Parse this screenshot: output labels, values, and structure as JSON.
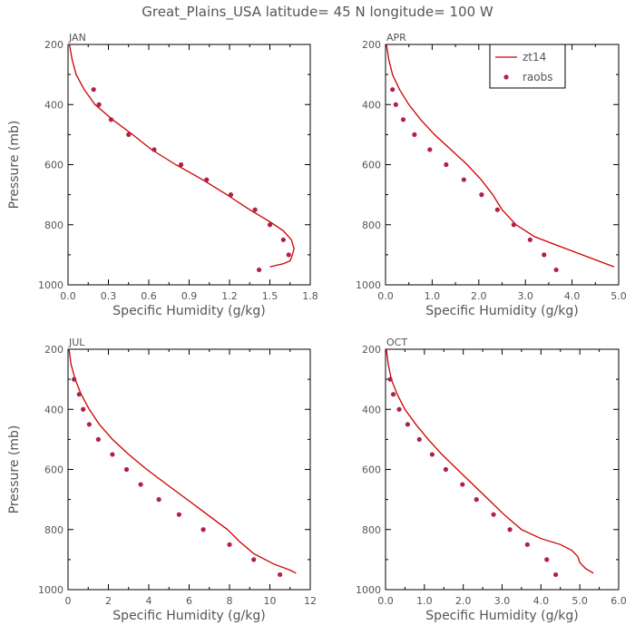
{
  "figure_title": "Great_Plains_USA   latitude= 45 N longitude= 100 W",
  "colors": {
    "line": "#cc0000",
    "points": "#b0204a",
    "text": "#555555",
    "axes": "#000000"
  },
  "chart_data": [
    {
      "type": "line",
      "panel_label": "JAN",
      "xlabel": "Specific Humidity (g/kg)",
      "ylabel": "Pressure (mb)",
      "xlim": [
        0,
        1.8
      ],
      "ylim": [
        1000,
        200
      ],
      "xticks": [
        "0.0",
        "0.3",
        "0.6",
        "0.9",
        "1.2",
        "1.5",
        "1.8"
      ],
      "yticks": [
        "200",
        "400",
        "600",
        "800",
        "1000"
      ],
      "show_legend": false,
      "legend": [],
      "series": [
        {
          "name": "zt14",
          "kind": "line",
          "x": [
            0.01,
            0.03,
            0.06,
            0.12,
            0.2,
            0.33,
            0.48,
            0.62,
            0.8,
            1.0,
            1.18,
            1.35,
            1.5,
            1.6,
            1.66,
            1.68,
            1.66,
            1.65,
            1.6,
            1.5
          ],
          "y": [
            200,
            250,
            300,
            350,
            400,
            450,
            500,
            550,
            600,
            650,
            700,
            750,
            790,
            820,
            850,
            880,
            910,
            920,
            930,
            940
          ]
        },
        {
          "name": "raobs",
          "kind": "scatter",
          "x": [
            0.19,
            0.23,
            0.32,
            0.45,
            0.64,
            0.84,
            1.03,
            1.21,
            1.39,
            1.5,
            1.6,
            1.64,
            1.42
          ],
          "y": [
            350,
            400,
            450,
            500,
            550,
            600,
            650,
            700,
            750,
            800,
            850,
            900,
            950
          ]
        }
      ]
    },
    {
      "type": "line",
      "panel_label": "APR",
      "xlabel": "Specific Humidity (g/kg)",
      "ylabel": "",
      "xlim": [
        0,
        5
      ],
      "ylim": [
        1000,
        200
      ],
      "xticks": [
        "0.0",
        "1.0",
        "2.0",
        "3.0",
        "4.0",
        "5.0"
      ],
      "yticks": [
        "200",
        "400",
        "600",
        "800",
        "1000"
      ],
      "show_legend": true,
      "legend": [
        "zt14",
        "raobs"
      ],
      "series": [
        {
          "name": "zt14",
          "kind": "line",
          "x": [
            0.02,
            0.07,
            0.15,
            0.3,
            0.5,
            0.75,
            1.05,
            1.4,
            1.75,
            2.05,
            2.3,
            2.5,
            2.8,
            3.2,
            3.7,
            4.3,
            4.9
          ],
          "y": [
            200,
            250,
            300,
            350,
            400,
            450,
            500,
            550,
            600,
            650,
            700,
            750,
            800,
            840,
            870,
            905,
            940
          ]
        },
        {
          "name": "raobs",
          "kind": "scatter",
          "x": [
            0.15,
            0.22,
            0.38,
            0.62,
            0.95,
            1.3,
            1.68,
            2.06,
            2.4,
            2.75,
            3.1,
            3.4,
            3.66
          ],
          "y": [
            350,
            400,
            450,
            500,
            550,
            600,
            650,
            700,
            750,
            800,
            850,
            900,
            950
          ]
        }
      ]
    },
    {
      "type": "line",
      "panel_label": "JUL",
      "xlabel": "Specific Humidity (g/kg)",
      "ylabel": "Pressure (mb)",
      "xlim": [
        0,
        12
      ],
      "ylim": [
        1000,
        200
      ],
      "xticks": [
        "0",
        "2",
        "4",
        "6",
        "8",
        "10",
        "12"
      ],
      "yticks": [
        "200",
        "400",
        "600",
        "800",
        "1000"
      ],
      "show_legend": false,
      "legend": [],
      "series": [
        {
          "name": "zt14",
          "kind": "line",
          "x": [
            0.05,
            0.15,
            0.35,
            0.65,
            1.05,
            1.55,
            2.2,
            3.0,
            3.9,
            4.9,
            5.9,
            6.9,
            7.9,
            8.5,
            9.2,
            10.2,
            11.0,
            11.3
          ],
          "y": [
            200,
            250,
            300,
            350,
            400,
            450,
            500,
            550,
            600,
            650,
            700,
            750,
            800,
            840,
            880,
            915,
            935,
            945
          ]
        },
        {
          "name": "raobs",
          "kind": "scatter",
          "x": [
            0.3,
            0.55,
            0.75,
            1.05,
            1.5,
            2.2,
            2.9,
            3.6,
            4.5,
            5.5,
            6.7,
            8.0,
            9.2,
            10.5
          ],
          "y": [
            300,
            350,
            400,
            450,
            500,
            550,
            600,
            650,
            700,
            750,
            800,
            850,
            900,
            950
          ]
        }
      ]
    },
    {
      "type": "line",
      "panel_label": "OCT",
      "xlabel": "Specific Humidity (g/kg)",
      "ylabel": "",
      "xlim": [
        0,
        6
      ],
      "ylim": [
        1000,
        200
      ],
      "xticks": [
        "0.0",
        "1.0",
        "2.0",
        "3.0",
        "4.0",
        "5.0",
        "6.0"
      ],
      "yticks": [
        "200",
        "400",
        "600",
        "800",
        "1000"
      ],
      "show_legend": false,
      "legend": [],
      "series": [
        {
          "name": "zt14",
          "kind": "line",
          "x": [
            0.02,
            0.07,
            0.15,
            0.3,
            0.5,
            0.78,
            1.1,
            1.45,
            1.85,
            2.25,
            2.65,
            3.05,
            3.5,
            4.0,
            4.5,
            4.8,
            4.95,
            5.0,
            5.15,
            5.35
          ],
          "y": [
            200,
            250,
            300,
            350,
            400,
            450,
            500,
            550,
            600,
            650,
            700,
            750,
            800,
            830,
            850,
            870,
            890,
            910,
            930,
            945
          ]
        },
        {
          "name": "raobs",
          "kind": "scatter",
          "x": [
            0.12,
            0.2,
            0.35,
            0.57,
            0.87,
            1.2,
            1.55,
            1.98,
            2.34,
            2.78,
            3.2,
            3.65,
            4.15,
            4.38
          ],
          "y": [
            300,
            350,
            400,
            450,
            500,
            550,
            600,
            650,
            700,
            750,
            800,
            850,
            900,
            950
          ]
        }
      ]
    }
  ]
}
